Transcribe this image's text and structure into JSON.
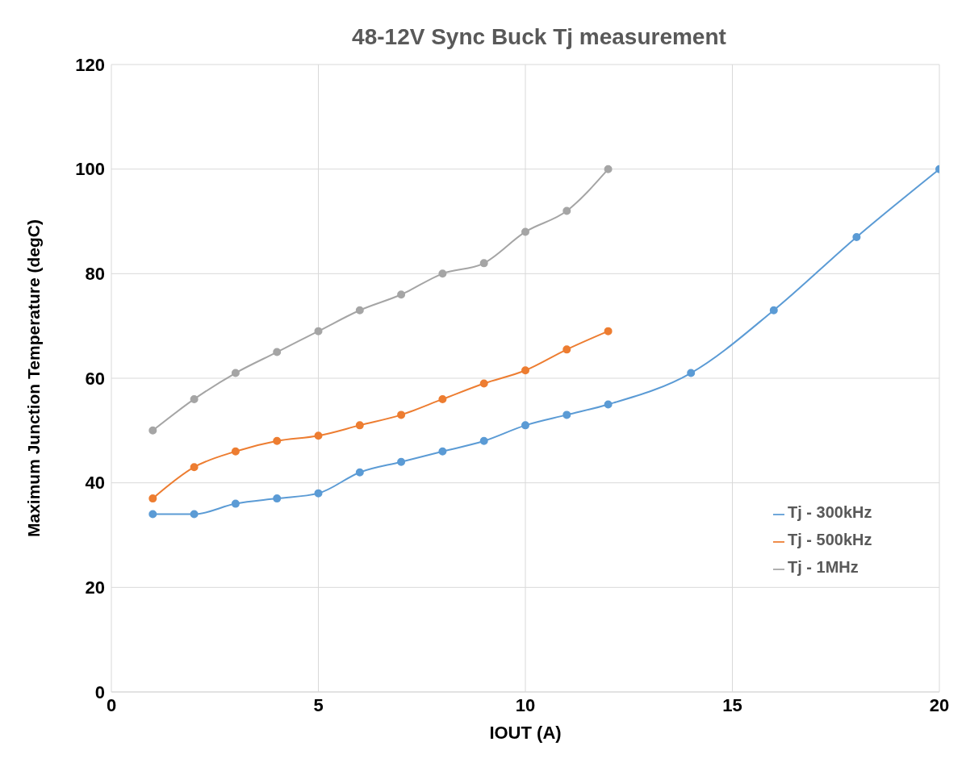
{
  "chart_data": {
    "type": "line",
    "title": "48-12V Sync Buck Tj measurement",
    "xlabel": "IOUT (A)",
    "ylabel": "Maximum Junction Temperature (degC)",
    "xlim": [
      0,
      20
    ],
    "xticks": [
      0,
      5,
      10,
      15,
      20
    ],
    "ylim": [
      0,
      120
    ],
    "yticks": [
      0,
      20,
      40,
      60,
      80,
      100,
      120
    ],
    "grid": true,
    "legend": "right",
    "marker": "circle",
    "line_style": "solid",
    "series": [
      {
        "name": "Tj - 300kHz",
        "color": "#5b9bd5",
        "x": [
          1,
          2,
          3,
          4,
          5,
          6,
          7,
          8,
          9,
          10,
          11,
          12,
          14,
          16,
          18,
          20
        ],
        "values": [
          34,
          34,
          36,
          37,
          38,
          42,
          44,
          46,
          48,
          51,
          53,
          55,
          61,
          73,
          87,
          100
        ]
      },
      {
        "name": "Tj - 500kHz",
        "color": "#ed7d31",
        "x": [
          1,
          2,
          3,
          4,
          5,
          6,
          7,
          8,
          9,
          10,
          11,
          12
        ],
        "values": [
          37,
          43,
          46,
          48,
          49,
          51,
          53,
          56,
          59,
          61.5,
          65.5,
          69
        ]
      },
      {
        "name": "Tj - 1MHz",
        "color": "#a5a5a5",
        "x": [
          1,
          2,
          3,
          4,
          5,
          6,
          7,
          8,
          9,
          10,
          11,
          12
        ],
        "values": [
          50,
          56,
          61,
          65,
          69,
          73,
          76,
          80,
          82,
          88,
          92,
          100
        ]
      }
    ]
  }
}
